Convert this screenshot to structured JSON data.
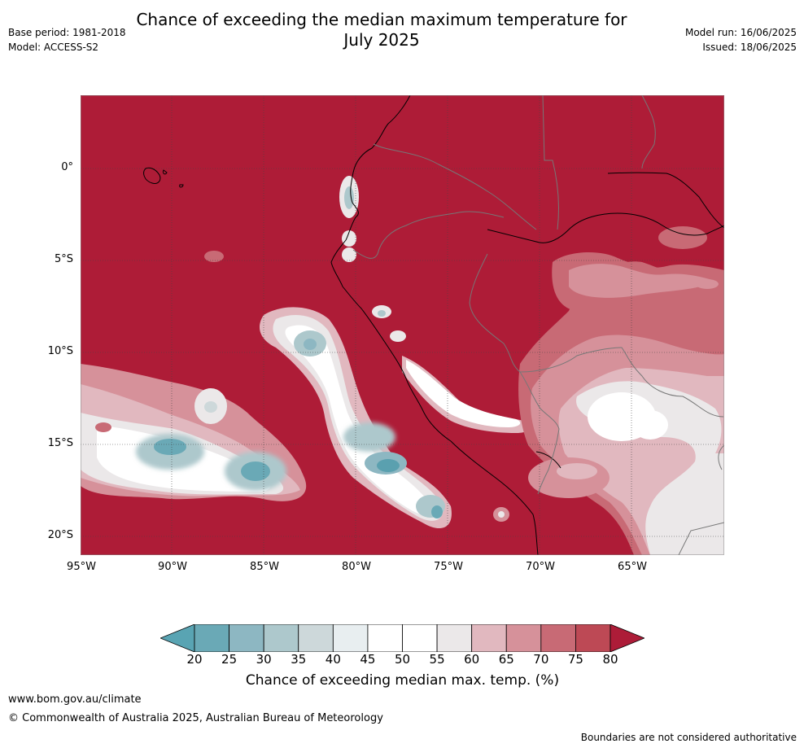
{
  "title": "Chance of exceeding the median maximum temperature for July 2025",
  "meta": {
    "base_period": "Base period: 1981-2018",
    "model": "Model: ACCESS-S2",
    "model_run": "Model run: 16/06/2025",
    "issued": "Issued: 18/06/2025"
  },
  "map": {
    "lat_labels": [
      "0°",
      "5°S",
      "10°S",
      "15°S",
      "20°S"
    ],
    "lon_labels": [
      "95°W",
      "90°W",
      "85°W",
      "80°W",
      "75°W",
      "70°W",
      "65°W"
    ]
  },
  "colorbar": {
    "ticks": [
      "20",
      "25",
      "30",
      "35",
      "40",
      "45",
      "50",
      "55",
      "60",
      "65",
      "70",
      "75",
      "80"
    ],
    "colors": [
      "#6aa9b6",
      "#8db7c2",
      "#adc8cc",
      "#cdd8da",
      "#e8eef0",
      "#ffffff",
      "#ffffff",
      "#ebe8e9",
      "#e1b8bf",
      "#d6919a",
      "#c86a75",
      "#bd4955"
    ],
    "low_extend_color": "#59a4b3",
    "high_extend_color": "#ad1c38",
    "label": "Chance of exceeding median max. temp. (%)"
  },
  "footer": {
    "url": "www.bom.gov.au/climate",
    "copyright": "© Commonwealth of Australia 2025, Australian Bureau of Meteorology",
    "disclaimer": "Boundaries are not considered authoritative"
  }
}
